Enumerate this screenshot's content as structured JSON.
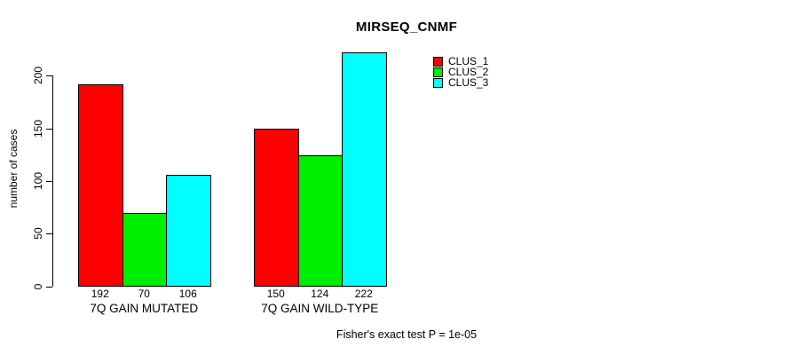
{
  "title": "MIRSEQ_CNMF",
  "footer": "Fisher's exact test P = 1e-05",
  "chart_data": {
    "type": "bar",
    "title": "MIRSEQ_CNMF",
    "xlabel": "",
    "ylabel": "number of cases",
    "categories": [
      "7Q GAIN MUTATED",
      "7Q GAIN WILD-TYPE"
    ],
    "series": [
      {
        "name": "CLUS_1",
        "color": "#ff0000",
        "values": [
          192,
          150
        ]
      },
      {
        "name": "CLUS_2",
        "color": "#00ee00",
        "values": [
          70,
          124
        ]
      },
      {
        "name": "CLUS_3",
        "color": "#00ffff",
        "values": [
          106,
          222
        ]
      }
    ],
    "bar_value_labels": [
      [
        192,
        70,
        106
      ],
      [
        150,
        124,
        222
      ]
    ],
    "yticks": [
      0,
      50,
      100,
      150,
      200
    ],
    "ylim": [
      0,
      200
    ],
    "grid": false,
    "legend_position": "top-right",
    "annotation": "Fisher's exact test P = 1e-05",
    "background": "#ffffff",
    "axis_color": "#000000"
  }
}
